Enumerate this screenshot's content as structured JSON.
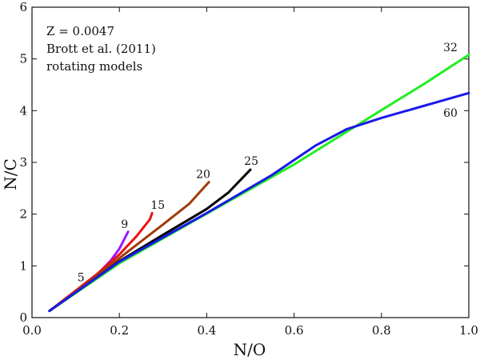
{
  "chart_data": {
    "type": "line",
    "title": "",
    "xlabel": "N/O",
    "ylabel": "N/C",
    "xlim": [
      0.0,
      1.0
    ],
    "ylim": [
      0,
      6
    ],
    "grid": false,
    "legend": "none",
    "x_ticks": [
      0.0,
      0.2,
      0.4,
      0.6,
      0.8,
      1.0
    ],
    "x_tick_labels": [
      "0.0",
      "0.2",
      "0.4",
      "0.6",
      "0.8",
      "1.0"
    ],
    "y_ticks": [
      0,
      1,
      2,
      3,
      4,
      5,
      6
    ],
    "y_tick_labels": [
      "0",
      "1",
      "2",
      "3",
      "4",
      "5",
      "6"
    ],
    "annotations": [
      {
        "text": "Z = 0.0047",
        "position": "top-left"
      },
      {
        "text": "Brott et al. (2011)",
        "position": "top-left"
      },
      {
        "text": "rotating models",
        "position": "top-left"
      }
    ],
    "series": [
      {
        "name": "5",
        "label_text": "5",
        "color": "#555555",
        "line_width": 2.2,
        "label_at": {
          "x": 0.112,
          "y": 0.7
        },
        "points": [
          [
            0.04,
            0.13
          ],
          [
            0.07,
            0.32
          ],
          [
            0.1,
            0.5
          ],
          [
            0.125,
            0.63
          ]
        ]
      },
      {
        "name": "9",
        "label_text": "9",
        "color": "#9b16ff",
        "line_width": 3,
        "label_at": {
          "x": 0.212,
          "y": 1.73
        },
        "points": [
          [
            0.04,
            0.13
          ],
          [
            0.08,
            0.38
          ],
          [
            0.12,
            0.63
          ],
          [
            0.15,
            0.84
          ],
          [
            0.18,
            1.1
          ],
          [
            0.2,
            1.33
          ],
          [
            0.22,
            1.66
          ]
        ]
      },
      {
        "name": "15",
        "label_text": "15",
        "color": "#ee1010",
        "line_width": 3,
        "label_at": {
          "x": 0.288,
          "y": 2.1
        },
        "points": [
          [
            0.04,
            0.13
          ],
          [
            0.1,
            0.52
          ],
          [
            0.15,
            0.85
          ],
          [
            0.2,
            1.22
          ],
          [
            0.24,
            1.58
          ],
          [
            0.27,
            1.9
          ],
          [
            0.275,
            2.02
          ]
        ]
      },
      {
        "name": "20",
        "label_text": "20",
        "color": "#a03a0a",
        "line_width": 3,
        "label_at": {
          "x": 0.392,
          "y": 2.7
        },
        "points": [
          [
            0.04,
            0.13
          ],
          [
            0.1,
            0.5
          ],
          [
            0.2,
            1.15
          ],
          [
            0.3,
            1.8
          ],
          [
            0.36,
            2.2
          ],
          [
            0.39,
            2.48
          ],
          [
            0.405,
            2.62
          ]
        ]
      },
      {
        "name": "25",
        "label_text": "25",
        "color": "#000000",
        "line_width": 3,
        "label_at": {
          "x": 0.502,
          "y": 2.95
        },
        "points": [
          [
            0.04,
            0.13
          ],
          [
            0.1,
            0.48
          ],
          [
            0.2,
            1.09
          ],
          [
            0.3,
            1.6
          ],
          [
            0.4,
            2.1
          ],
          [
            0.45,
            2.42
          ],
          [
            0.5,
            2.86
          ]
        ]
      },
      {
        "name": "32",
        "label_text": "32",
        "color": "#22ee22",
        "line_width": 3,
        "label_at": {
          "x": 0.958,
          "y": 5.15
        },
        "points": [
          [
            0.04,
            0.13
          ],
          [
            0.2,
            1.05
          ],
          [
            0.4,
            2.01
          ],
          [
            0.6,
            2.96
          ],
          [
            0.8,
            4.01
          ],
          [
            0.9,
            4.53
          ],
          [
            1.0,
            5.08
          ]
        ]
      },
      {
        "name": "60",
        "label_text": "60",
        "color": "#1a1ae8",
        "line_width": 3,
        "label_at": {
          "x": 0.958,
          "y": 3.88
        },
        "points": [
          [
            0.04,
            0.13
          ],
          [
            0.2,
            1.08
          ],
          [
            0.4,
            2.02
          ],
          [
            0.55,
            2.76
          ],
          [
            0.65,
            3.33
          ],
          [
            0.72,
            3.64
          ],
          [
            0.8,
            3.86
          ],
          [
            0.9,
            4.1
          ],
          [
            1.0,
            4.34
          ]
        ]
      }
    ]
  }
}
